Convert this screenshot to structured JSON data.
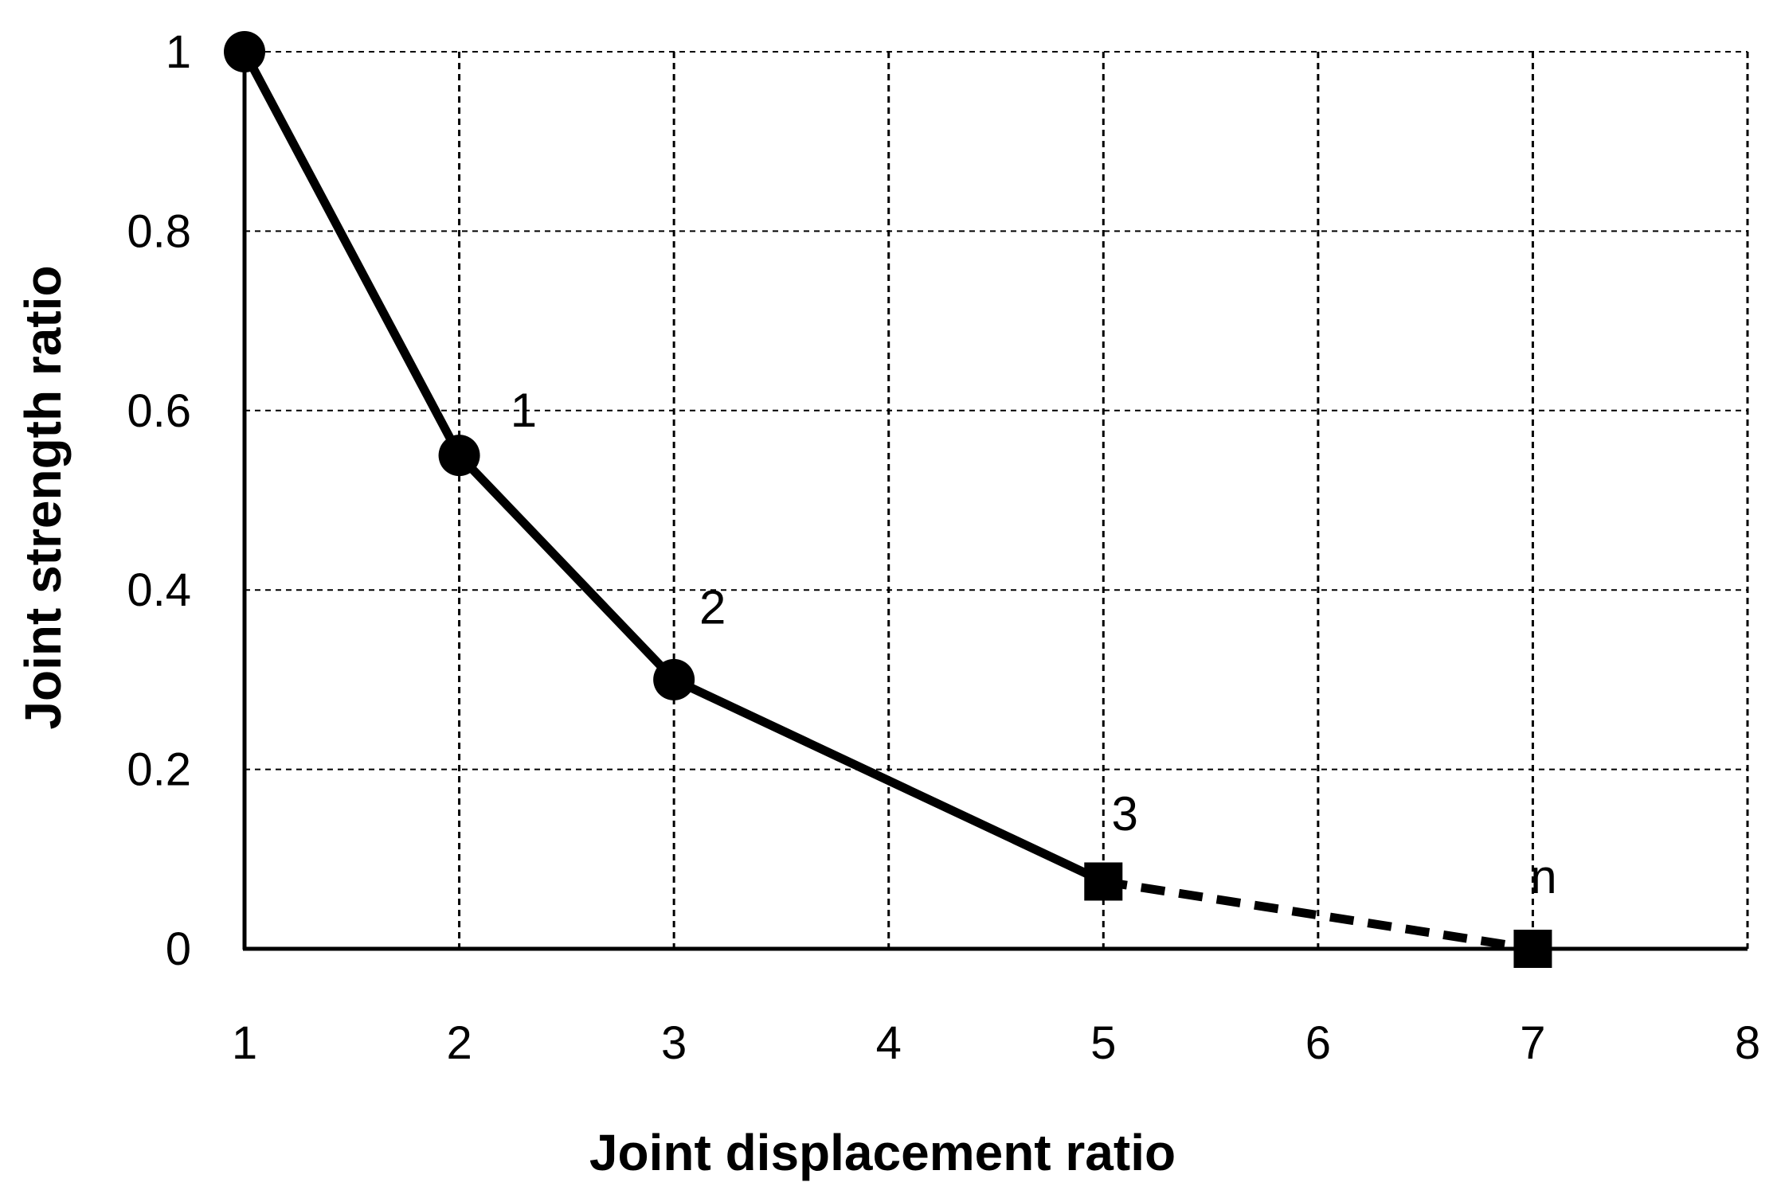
{
  "chart_data": {
    "type": "line",
    "title": "",
    "xlabel": "Joint displacement ratio",
    "ylabel": "Joint strength ratio",
    "xlim": [
      1,
      8
    ],
    "ylim": [
      0,
      1
    ],
    "xticks": [
      "1",
      "2",
      "3",
      "4",
      "5",
      "6",
      "7",
      "8"
    ],
    "yticks": [
      "0",
      "0.2",
      "0.4",
      "0.6",
      "0.8",
      "1"
    ],
    "grid": true,
    "series": [
      {
        "line_style": "solid",
        "marker": "circle",
        "x": [
          1,
          2,
          3
        ],
        "y": [
          1,
          0.55,
          0.3
        ]
      },
      {
        "line_style": "solid",
        "marker": "none",
        "x": [
          3,
          5
        ],
        "y": [
          0.3,
          0.075
        ]
      },
      {
        "line_style": "dashed",
        "marker": "square",
        "x": [
          5,
          7
        ],
        "y": [
          0.075,
          0
        ]
      }
    ],
    "annotations": [
      {
        "text": "1",
        "x": 2.3,
        "y": 0.6
      },
      {
        "text": "2",
        "x": 3.18,
        "y": 0.38
      },
      {
        "text": "3",
        "x": 5.1,
        "y": 0.15
      },
      {
        "text": "n",
        "x": 7.05,
        "y": 0.08
      }
    ]
  }
}
